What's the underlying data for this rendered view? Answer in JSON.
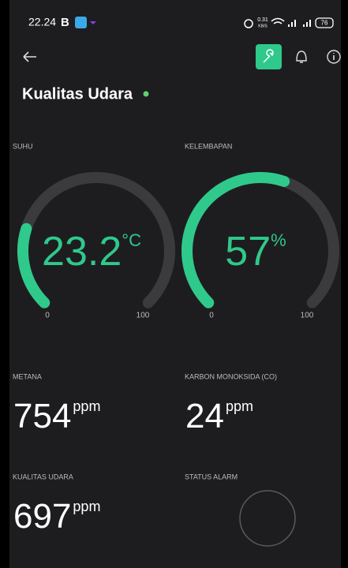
{
  "status_bar": {
    "time": "22.24",
    "app_letter": "B",
    "speed": "0.31",
    "speed_unit": "KB/S",
    "battery": "76"
  },
  "header": {
    "title": "Kualitas Udara"
  },
  "gauges": [
    {
      "label": "SUHU",
      "value": 23.2,
      "unit": "°C",
      "min": 0,
      "max": 100
    },
    {
      "label": "KELEMBAPAN",
      "value": 57,
      "unit": "%",
      "min": 0,
      "max": 100
    }
  ],
  "metrics": [
    {
      "label": "METANA",
      "value": 754,
      "unit": "ppm"
    },
    {
      "label": "KARBON MONOKSIDA (CO)",
      "value": 24,
      "unit": "ppm"
    },
    {
      "label": "KUALITAS UDARA",
      "value": 697,
      "unit": "ppm"
    }
  ],
  "alarm": {
    "label": "STATUS ALARM"
  }
}
